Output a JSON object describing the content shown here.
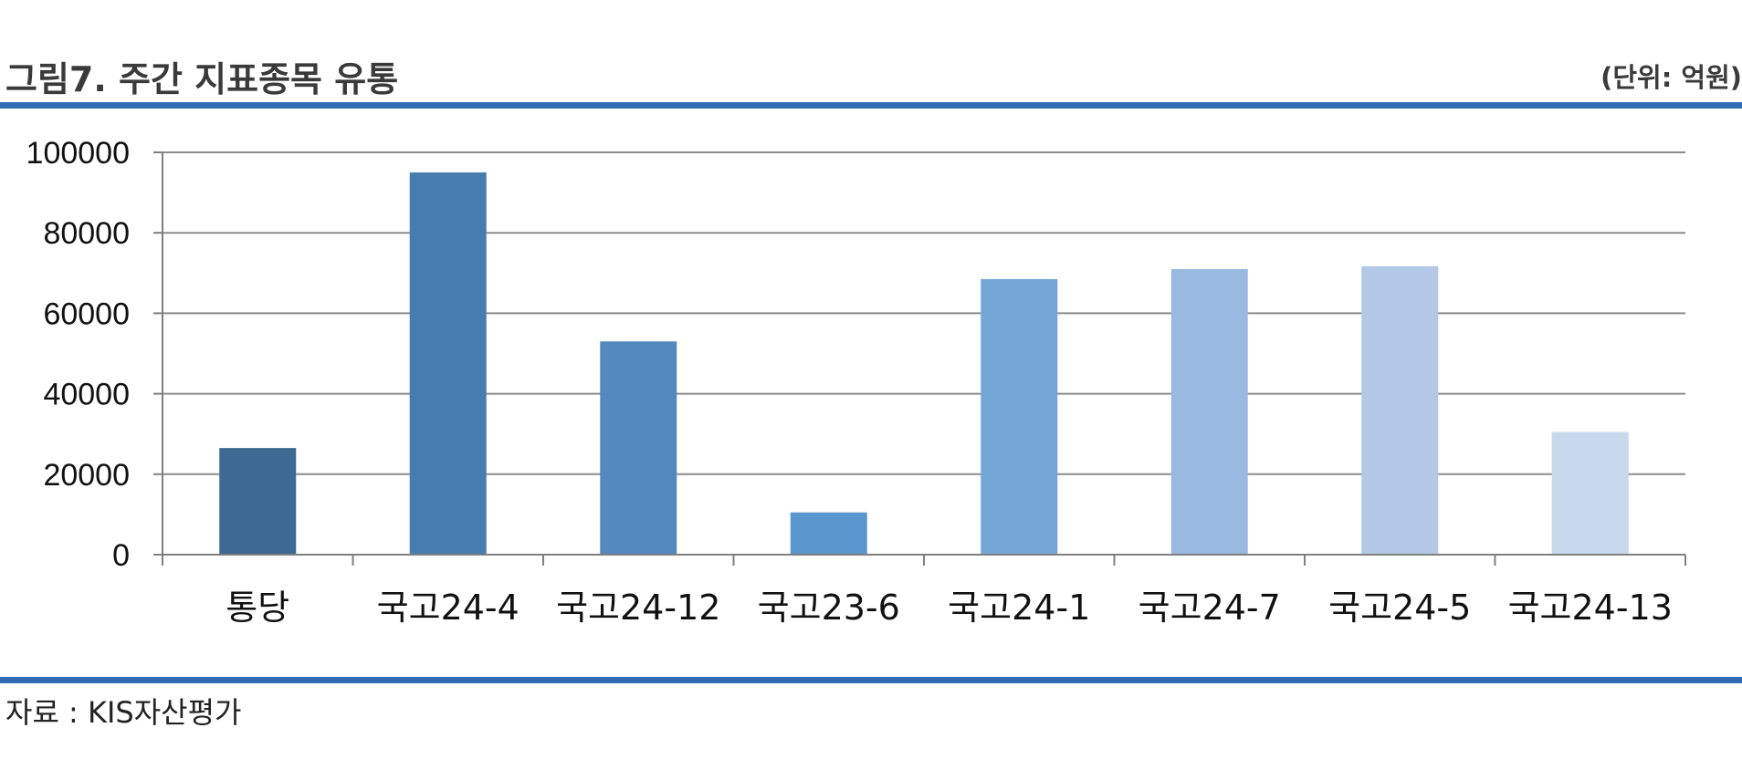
{
  "header": {
    "title": "그림7. 주간 지표종목 유통",
    "unit": "(단위: 억원)"
  },
  "footer": {
    "source": "자료 : KIS자산평가"
  },
  "colors": {
    "rule": "#2E6DB4",
    "grid": "#8c8c8c",
    "axis": "#7f7f7f",
    "bars": [
      "#3D6A93",
      "#477CAE",
      "#5389BE",
      "#5996CE",
      "#73A6D7",
      "#98B9E0",
      "#B2C8E6",
      "#C7D9EB"
    ]
  },
  "chart_data": {
    "type": "bar",
    "title": "",
    "xlabel": "",
    "ylabel": "",
    "ylim": [
      0,
      100000
    ],
    "yticks": [
      0,
      20000,
      40000,
      60000,
      80000,
      100000
    ],
    "grid": true,
    "legend": "none",
    "categories": [
      "통당",
      "국고24-4",
      "국고24-12",
      "국고23-6",
      "국고24-1",
      "국고24-7",
      "국고24-5",
      "국고24-13"
    ],
    "values": [
      26500,
      95000,
      53000,
      10500,
      68500,
      71000,
      71700,
      30500
    ]
  }
}
